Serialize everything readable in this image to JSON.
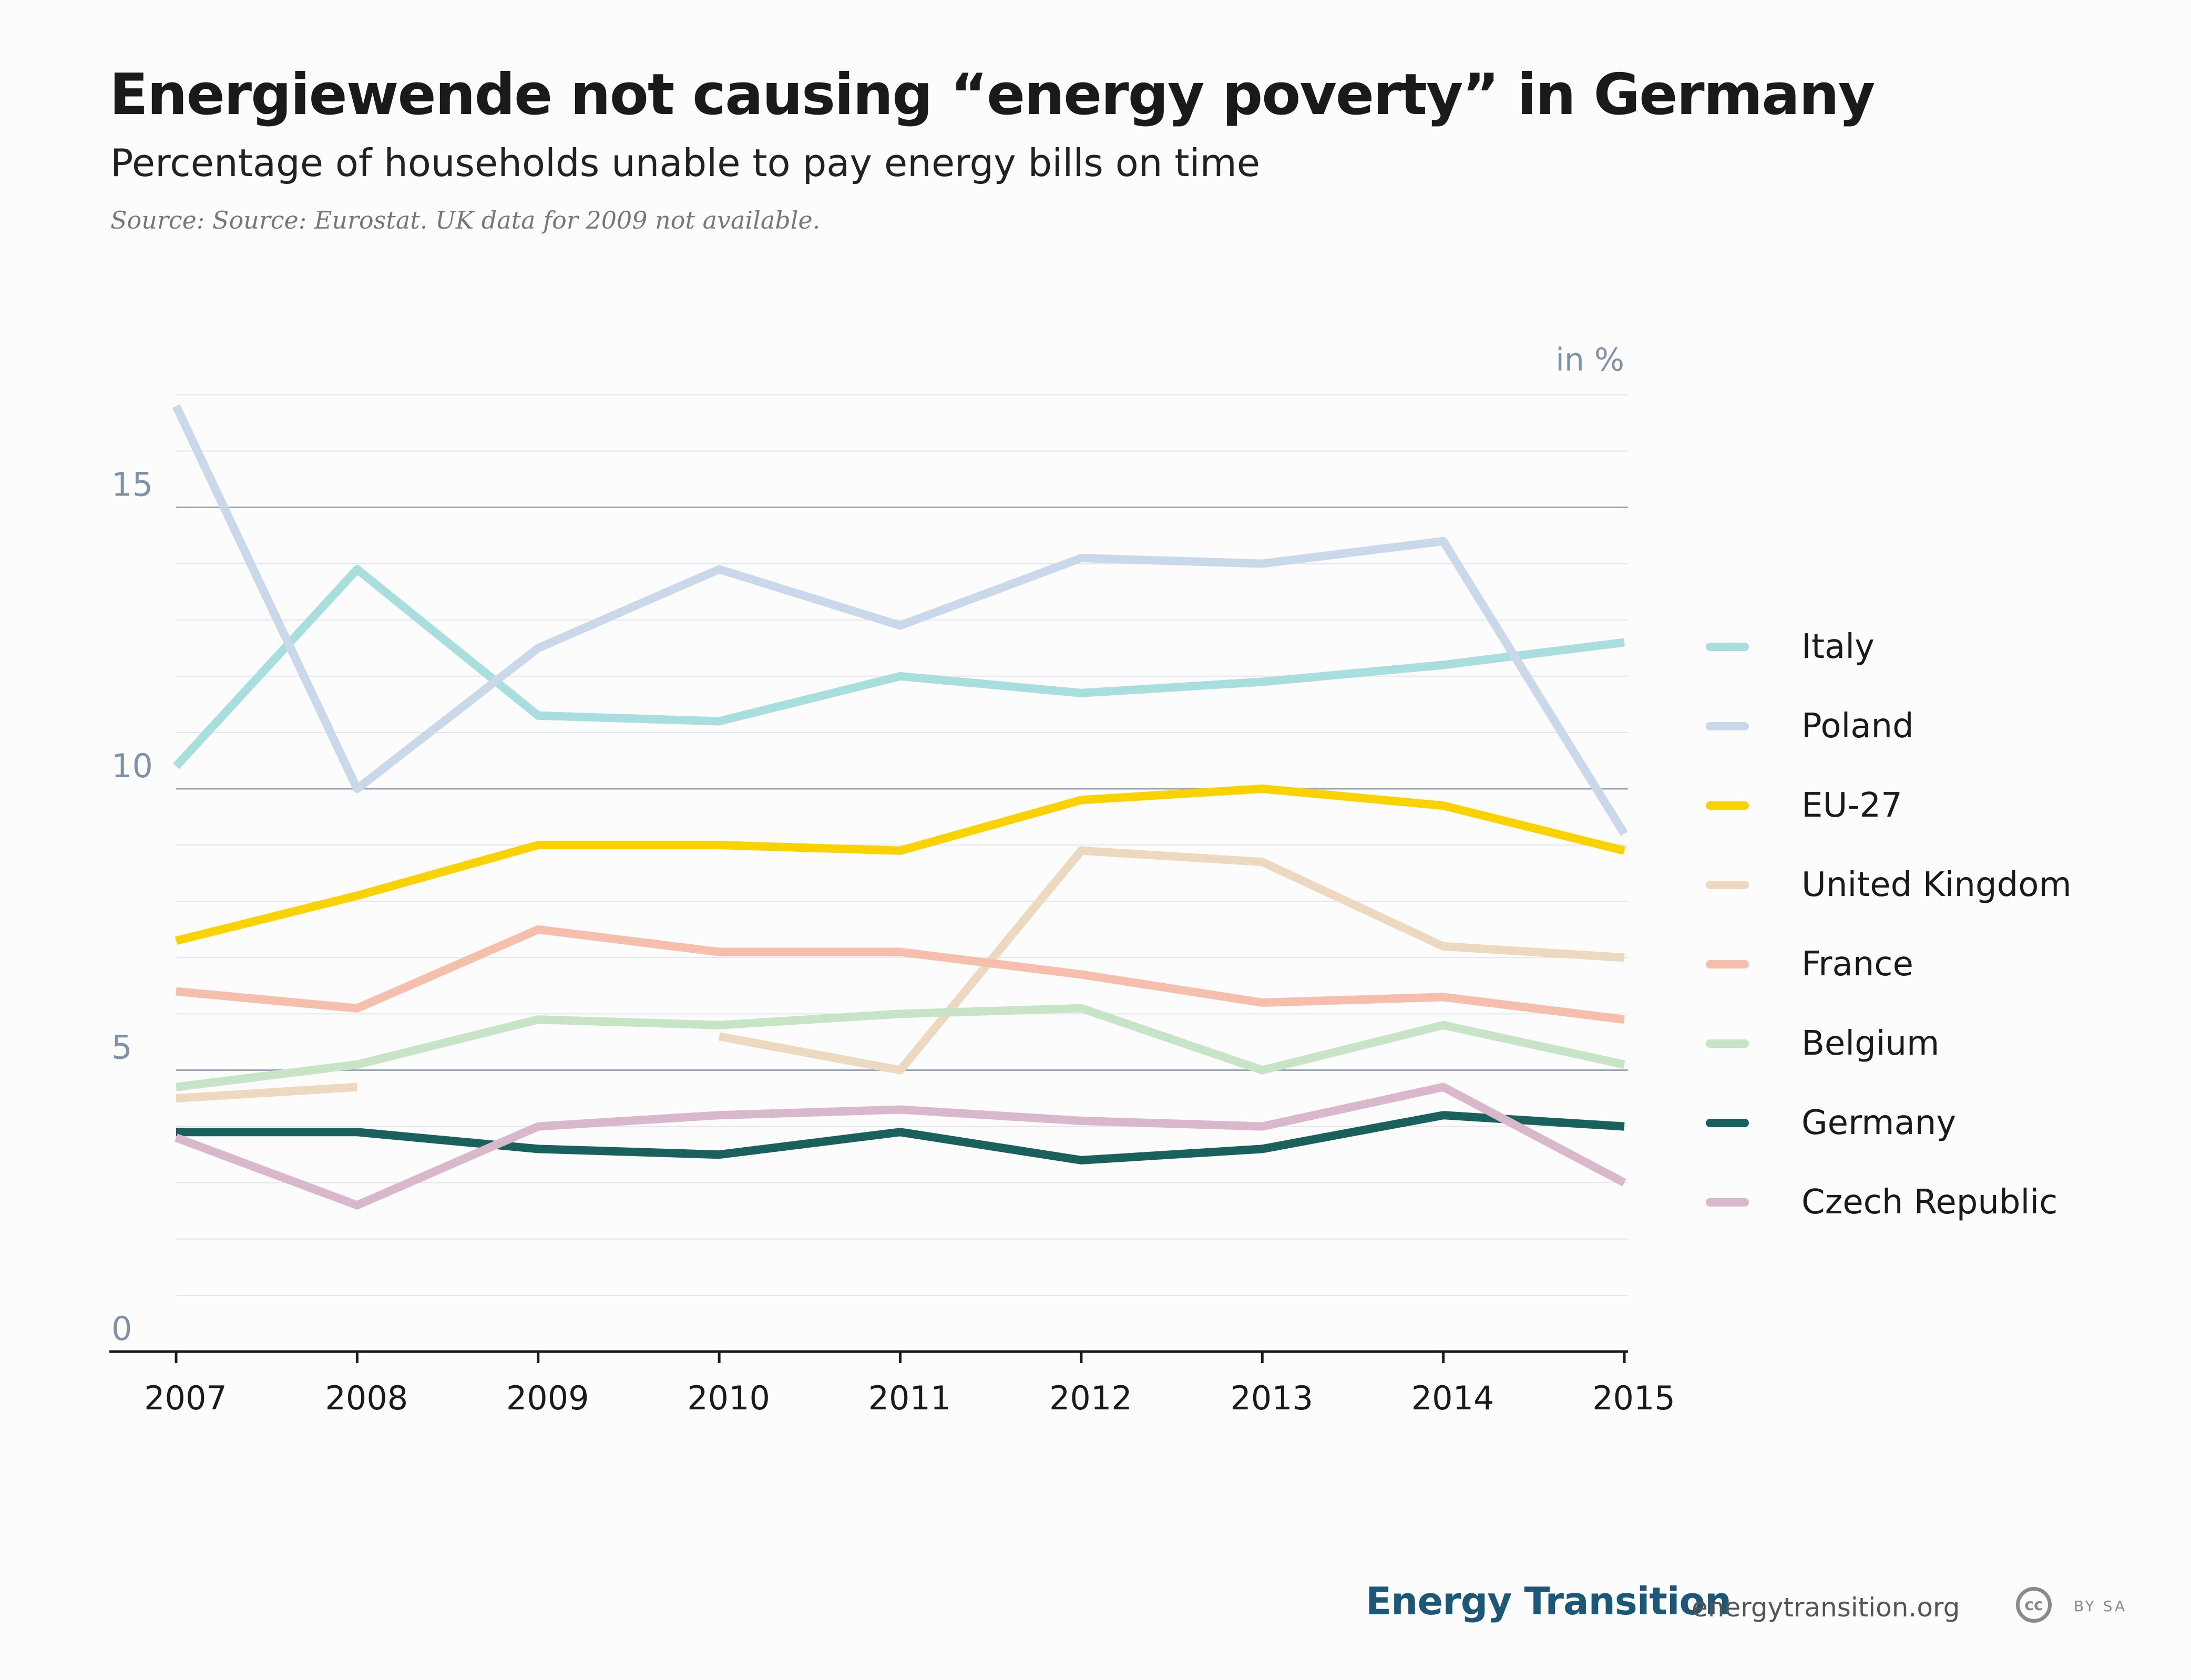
{
  "header": {
    "title": "Energiewende not causing “energy poverty” in Germany",
    "subtitle": "Percentage of households unable to pay energy bills on time",
    "source": "Source: Source: Eurostat. UK data for 2009 not available."
  },
  "chart_data": {
    "type": "line",
    "unit_label": "in %",
    "x": [
      "2007",
      "2008",
      "2009",
      "2010",
      "2011",
      "2012",
      "2013",
      "2014",
      "2015"
    ],
    "ylim": [
      0,
      17
    ],
    "yticks": [
      0,
      5,
      10,
      15
    ],
    "grid": true,
    "legend_position": "right",
    "series": [
      {
        "name": "Italy",
        "color": "#a8dede",
        "values": [
          10.4,
          13.9,
          11.3,
          11.2,
          12.0,
          11.7,
          11.9,
          12.2,
          12.6
        ]
      },
      {
        "name": "Poland",
        "color": "#c9d9ea",
        "values": [
          16.8,
          10.0,
          12.5,
          13.9,
          12.9,
          14.1,
          14.0,
          14.4,
          9.2
        ]
      },
      {
        "name": "EU-27",
        "color": "#fad200",
        "values": [
          7.3,
          8.1,
          9.0,
          9.0,
          8.9,
          9.8,
          10.0,
          9.7,
          8.9
        ]
      },
      {
        "name": "United Kingdom",
        "color": "#ecd9bf",
        "values": [
          4.5,
          4.7,
          null,
          5.6,
          5.0,
          8.9,
          8.7,
          7.2,
          7.0
        ]
      },
      {
        "name": "France",
        "color": "#f5bfac",
        "values": [
          6.4,
          6.1,
          7.5,
          7.1,
          7.1,
          6.7,
          6.2,
          6.3,
          5.9
        ]
      },
      {
        "name": "Belgium",
        "color": "#c8e4c6",
        "values": [
          4.7,
          5.1,
          5.9,
          5.8,
          6.0,
          6.1,
          5.0,
          5.8,
          5.1
        ]
      },
      {
        "name": "Germany",
        "color": "#1a615d",
        "values": [
          3.9,
          3.9,
          3.6,
          3.5,
          3.9,
          3.4,
          3.6,
          4.2,
          4.0
        ]
      },
      {
        "name": "Czech Republic",
        "color": "#d8b8ca",
        "values": [
          3.8,
          2.6,
          4.0,
          4.2,
          4.3,
          4.1,
          4.0,
          4.7,
          3.0
        ]
      }
    ]
  },
  "footer": {
    "brand": "Energy Transition",
    "url": "energytransition.org",
    "cc_badge": "cc",
    "license": "BY SA"
  }
}
